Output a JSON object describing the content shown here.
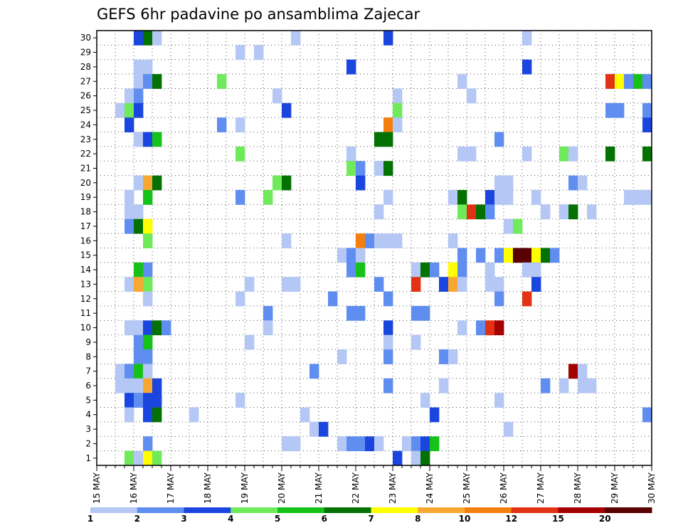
{
  "chart_data": {
    "type": "heatmap",
    "title": "GEFS 6hr padavine po ansamblima Zajecar",
    "x_ticks": [
      "15 MAY",
      "16 MAY",
      "17 MAY",
      "18 MAY",
      "19 MAY",
      "20 MAY",
      "21 MAY",
      "22 MAY",
      "23 MAY",
      "24 MAY",
      "25 MAY",
      "26 MAY",
      "27 MAY",
      "28 MAY",
      "29 MAY",
      "30 MAY"
    ],
    "y_ticks": [
      "1",
      "2",
      "3",
      "4",
      "5",
      "6",
      "7",
      "8",
      "9",
      "10",
      "11",
      "12",
      "13",
      "14",
      "15",
      "16",
      "17",
      "18",
      "19",
      "20",
      "21",
      "22",
      "23",
      "24",
      "25",
      "26",
      "27",
      "28",
      "29",
      "30"
    ],
    "x_range": [
      0,
      60
    ],
    "y_range": [
      0,
      30
    ],
    "grid": true,
    "legend": "bottom",
    "colorbar": {
      "labels": [
        "1",
        "2",
        "3",
        "4",
        "5",
        "6",
        "7",
        "8",
        "10",
        "12",
        "15",
        "20"
      ],
      "colors": [
        "#b4c7f5",
        "#5f8ef0",
        "#1a46df",
        "#6fea5a",
        "#16c21a",
        "#037203",
        "#ffff00",
        "#f8a832",
        "#f57f0c",
        "#e23214",
        "#a40000",
        "#5a0000"
      ]
    },
    "cells": [
      {
        "t": 4,
        "m": 30,
        "c": 3
      },
      {
        "t": 5,
        "m": 30,
        "c": 6
      },
      {
        "t": 6,
        "m": 30,
        "c": 1
      },
      {
        "t": 21,
        "m": 30,
        "c": 1
      },
      {
        "t": 31,
        "m": 30,
        "c": 3
      },
      {
        "t": 46,
        "m": 30,
        "c": 1
      },
      {
        "t": 15,
        "m": 29,
        "c": 1
      },
      {
        "t": 17,
        "m": 29,
        "c": 1
      },
      {
        "t": 4,
        "m": 28,
        "c": 1
      },
      {
        "t": 5,
        "m": 28,
        "c": 1
      },
      {
        "t": 27,
        "m": 28,
        "c": 3
      },
      {
        "t": 46,
        "m": 28,
        "c": 3
      },
      {
        "t": 4,
        "m": 27,
        "c": 1
      },
      {
        "t": 5,
        "m": 27,
        "c": 2
      },
      {
        "t": 6,
        "m": 27,
        "c": 6
      },
      {
        "t": 13,
        "m": 27,
        "c": 4
      },
      {
        "t": 39,
        "m": 27,
        "c": 1
      },
      {
        "t": 55,
        "m": 27,
        "c": 10
      },
      {
        "t": 56,
        "m": 27,
        "c": 7
      },
      {
        "t": 57,
        "m": 27,
        "c": 2
      },
      {
        "t": 58,
        "m": 27,
        "c": 5
      },
      {
        "t": 59,
        "m": 27,
        "c": 2
      },
      {
        "t": 3,
        "m": 26,
        "c": 1
      },
      {
        "t": 4,
        "m": 26,
        "c": 2
      },
      {
        "t": 19,
        "m": 26,
        "c": 1
      },
      {
        "t": 32,
        "m": 26,
        "c": 1
      },
      {
        "t": 40,
        "m": 26,
        "c": 1
      },
      {
        "t": 2,
        "m": 25,
        "c": 1
      },
      {
        "t": 3,
        "m": 25,
        "c": 4
      },
      {
        "t": 4,
        "m": 25,
        "c": 3
      },
      {
        "t": 20,
        "m": 25,
        "c": 3
      },
      {
        "t": 32,
        "m": 25,
        "c": 4
      },
      {
        "t": 55,
        "m": 25,
        "c": 2
      },
      {
        "t": 56,
        "m": 25,
        "c": 2
      },
      {
        "t": 59,
        "m": 25,
        "c": 2
      },
      {
        "t": 3,
        "m": 24,
        "c": 3
      },
      {
        "t": 13,
        "m": 24,
        "c": 2
      },
      {
        "t": 15,
        "m": 24,
        "c": 1
      },
      {
        "t": 31,
        "m": 24,
        "c": 9
      },
      {
        "t": 32,
        "m": 24,
        "c": 1
      },
      {
        "t": 59,
        "m": 24,
        "c": 3
      },
      {
        "t": 4,
        "m": 23,
        "c": 1
      },
      {
        "t": 5,
        "m": 23,
        "c": 3
      },
      {
        "t": 6,
        "m": 23,
        "c": 5
      },
      {
        "t": 30,
        "m": 23,
        "c": 6
      },
      {
        "t": 31,
        "m": 23,
        "c": 6
      },
      {
        "t": 43,
        "m": 23,
        "c": 2
      },
      {
        "t": 15,
        "m": 22,
        "c": 4
      },
      {
        "t": 27,
        "m": 22,
        "c": 1
      },
      {
        "t": 39,
        "m": 22,
        "c": 1
      },
      {
        "t": 40,
        "m": 22,
        "c": 1
      },
      {
        "t": 46,
        "m": 22,
        "c": 1
      },
      {
        "t": 50,
        "m": 22,
        "c": 4
      },
      {
        "t": 51,
        "m": 22,
        "c": 1
      },
      {
        "t": 55,
        "m": 22,
        "c": 6
      },
      {
        "t": 59,
        "m": 22,
        "c": 6
      },
      {
        "t": 27,
        "m": 21,
        "c": 4
      },
      {
        "t": 28,
        "m": 21,
        "c": 2
      },
      {
        "t": 30,
        "m": 21,
        "c": 1
      },
      {
        "t": 31,
        "m": 21,
        "c": 6
      },
      {
        "t": 4,
        "m": 20,
        "c": 1
      },
      {
        "t": 5,
        "m": 20,
        "c": 8
      },
      {
        "t": 6,
        "m": 20,
        "c": 6
      },
      {
        "t": 19,
        "m": 20,
        "c": 4
      },
      {
        "t": 20,
        "m": 20,
        "c": 6
      },
      {
        "t": 28,
        "m": 20,
        "c": 3
      },
      {
        "t": 43,
        "m": 20,
        "c": 1
      },
      {
        "t": 44,
        "m": 20,
        "c": 1
      },
      {
        "t": 51,
        "m": 20,
        "c": 2
      },
      {
        "t": 52,
        "m": 20,
        "c": 1
      },
      {
        "t": 3,
        "m": 19,
        "c": 1
      },
      {
        "t": 5,
        "m": 19,
        "c": 5
      },
      {
        "t": 15,
        "m": 19,
        "c": 2
      },
      {
        "t": 18,
        "m": 19,
        "c": 4
      },
      {
        "t": 31,
        "m": 19,
        "c": 1
      },
      {
        "t": 38,
        "m": 19,
        "c": 1
      },
      {
        "t": 39,
        "m": 19,
        "c": 6
      },
      {
        "t": 42,
        "m": 19,
        "c": 3
      },
      {
        "t": 43,
        "m": 19,
        "c": 1
      },
      {
        "t": 44,
        "m": 19,
        "c": 1
      },
      {
        "t": 47,
        "m": 19,
        "c": 1
      },
      {
        "t": 57,
        "m": 19,
        "c": 1
      },
      {
        "t": 58,
        "m": 19,
        "c": 1
      },
      {
        "t": 59,
        "m": 19,
        "c": 1
      },
      {
        "t": 3,
        "m": 18,
        "c": 1
      },
      {
        "t": 4,
        "m": 18,
        "c": 1
      },
      {
        "t": 30,
        "m": 18,
        "c": 1
      },
      {
        "t": 39,
        "m": 18,
        "c": 4
      },
      {
        "t": 40,
        "m": 18,
        "c": 10
      },
      {
        "t": 41,
        "m": 18,
        "c": 6
      },
      {
        "t": 42,
        "m": 18,
        "c": 2
      },
      {
        "t": 48,
        "m": 18,
        "c": 1
      },
      {
        "t": 50,
        "m": 18,
        "c": 1
      },
      {
        "t": 51,
        "m": 18,
        "c": 6
      },
      {
        "t": 53,
        "m": 18,
        "c": 1
      },
      {
        "t": 3,
        "m": 17,
        "c": 2
      },
      {
        "t": 4,
        "m": 17,
        "c": 6
      },
      {
        "t": 5,
        "m": 17,
        "c": 7
      },
      {
        "t": 44,
        "m": 17,
        "c": 1
      },
      {
        "t": 45,
        "m": 17,
        "c": 4
      },
      {
        "t": 5,
        "m": 16,
        "c": 4
      },
      {
        "t": 20,
        "m": 16,
        "c": 1
      },
      {
        "t": 28,
        "m": 16,
        "c": 9
      },
      {
        "t": 29,
        "m": 16,
        "c": 2
      },
      {
        "t": 30,
        "m": 16,
        "c": 1
      },
      {
        "t": 31,
        "m": 16,
        "c": 1
      },
      {
        "t": 32,
        "m": 16,
        "c": 1
      },
      {
        "t": 38,
        "m": 16,
        "c": 1
      },
      {
        "t": 26,
        "m": 15,
        "c": 1
      },
      {
        "t": 27,
        "m": 15,
        "c": 2
      },
      {
        "t": 28,
        "m": 15,
        "c": 1
      },
      {
        "t": 39,
        "m": 15,
        "c": 2
      },
      {
        "t": 41,
        "m": 15,
        "c": 2
      },
      {
        "t": 43,
        "m": 15,
        "c": 2
      },
      {
        "t": 44,
        "m": 15,
        "c": 7
      },
      {
        "t": 45,
        "m": 15,
        "c": 12
      },
      {
        "t": 46,
        "m": 15,
        "c": 12
      },
      {
        "t": 47,
        "m": 15,
        "c": 7
      },
      {
        "t": 48,
        "m": 15,
        "c": 6
      },
      {
        "t": 49,
        "m": 15,
        "c": 2
      },
      {
        "t": 4,
        "m": 14,
        "c": 5
      },
      {
        "t": 5,
        "m": 14,
        "c": 2
      },
      {
        "t": 27,
        "m": 14,
        "c": 2
      },
      {
        "t": 28,
        "m": 14,
        "c": 5
      },
      {
        "t": 34,
        "m": 14,
        "c": 1
      },
      {
        "t": 35,
        "m": 14,
        "c": 6
      },
      {
        "t": 36,
        "m": 14,
        "c": 2
      },
      {
        "t": 38,
        "m": 14,
        "c": 7
      },
      {
        "t": 39,
        "m": 14,
        "c": 2
      },
      {
        "t": 42,
        "m": 14,
        "c": 1
      },
      {
        "t": 46,
        "m": 14,
        "c": 1
      },
      {
        "t": 47,
        "m": 14,
        "c": 1
      },
      {
        "t": 3,
        "m": 13,
        "c": 1
      },
      {
        "t": 4,
        "m": 13,
        "c": 8
      },
      {
        "t": 5,
        "m": 13,
        "c": 4
      },
      {
        "t": 16,
        "m": 13,
        "c": 1
      },
      {
        "t": 20,
        "m": 13,
        "c": 1
      },
      {
        "t": 21,
        "m": 13,
        "c": 1
      },
      {
        "t": 30,
        "m": 13,
        "c": 2
      },
      {
        "t": 34,
        "m": 13,
        "c": 10
      },
      {
        "t": 37,
        "m": 13,
        "c": 3
      },
      {
        "t": 38,
        "m": 13,
        "c": 8
      },
      {
        "t": 39,
        "m": 13,
        "c": 1
      },
      {
        "t": 42,
        "m": 13,
        "c": 1
      },
      {
        "t": 43,
        "m": 13,
        "c": 1
      },
      {
        "t": 47,
        "m": 13,
        "c": 3
      },
      {
        "t": 5,
        "m": 12,
        "c": 1
      },
      {
        "t": 15,
        "m": 12,
        "c": 1
      },
      {
        "t": 25,
        "m": 12,
        "c": 2
      },
      {
        "t": 31,
        "m": 12,
        "c": 2
      },
      {
        "t": 43,
        "m": 12,
        "c": 2
      },
      {
        "t": 46,
        "m": 12,
        "c": 10
      },
      {
        "t": 18,
        "m": 11,
        "c": 2
      },
      {
        "t": 27,
        "m": 11,
        "c": 2
      },
      {
        "t": 28,
        "m": 11,
        "c": 2
      },
      {
        "t": 34,
        "m": 11,
        "c": 2
      },
      {
        "t": 35,
        "m": 11,
        "c": 2
      },
      {
        "t": 3,
        "m": 10,
        "c": 1
      },
      {
        "t": 4,
        "m": 10,
        "c": 1
      },
      {
        "t": 5,
        "m": 10,
        "c": 3
      },
      {
        "t": 6,
        "m": 10,
        "c": 6
      },
      {
        "t": 7,
        "m": 10,
        "c": 2
      },
      {
        "t": 18,
        "m": 10,
        "c": 1
      },
      {
        "t": 31,
        "m": 10,
        "c": 3
      },
      {
        "t": 39,
        "m": 10,
        "c": 1
      },
      {
        "t": 41,
        "m": 10,
        "c": 2
      },
      {
        "t": 42,
        "m": 10,
        "c": 10
      },
      {
        "t": 43,
        "m": 10,
        "c": 11
      },
      {
        "t": 4,
        "m": 9,
        "c": 2
      },
      {
        "t": 5,
        "m": 9,
        "c": 5
      },
      {
        "t": 16,
        "m": 9,
        "c": 1
      },
      {
        "t": 31,
        "m": 9,
        "c": 1
      },
      {
        "t": 34,
        "m": 9,
        "c": 1
      },
      {
        "t": 4,
        "m": 8,
        "c": 2
      },
      {
        "t": 5,
        "m": 8,
        "c": 2
      },
      {
        "t": 26,
        "m": 8,
        "c": 1
      },
      {
        "t": 31,
        "m": 8,
        "c": 2
      },
      {
        "t": 37,
        "m": 8,
        "c": 2
      },
      {
        "t": 38,
        "m": 8,
        "c": 1
      },
      {
        "t": 2,
        "m": 7,
        "c": 1
      },
      {
        "t": 3,
        "m": 7,
        "c": 2
      },
      {
        "t": 4,
        "m": 7,
        "c": 5
      },
      {
        "t": 5,
        "m": 7,
        "c": 1
      },
      {
        "t": 23,
        "m": 7,
        "c": 2
      },
      {
        "t": 51,
        "m": 7,
        "c": 11
      },
      {
        "t": 52,
        "m": 7,
        "c": 1
      },
      {
        "t": 2,
        "m": 6,
        "c": 1
      },
      {
        "t": 3,
        "m": 6,
        "c": 1
      },
      {
        "t": 4,
        "m": 6,
        "c": 1
      },
      {
        "t": 5,
        "m": 6,
        "c": 8
      },
      {
        "t": 6,
        "m": 6,
        "c": 3
      },
      {
        "t": 31,
        "m": 6,
        "c": 2
      },
      {
        "t": 37,
        "m": 6,
        "c": 1
      },
      {
        "t": 48,
        "m": 6,
        "c": 2
      },
      {
        "t": 50,
        "m": 6,
        "c": 1
      },
      {
        "t": 52,
        "m": 6,
        "c": 1
      },
      {
        "t": 53,
        "m": 6,
        "c": 1
      },
      {
        "t": 3,
        "m": 5,
        "c": 3
      },
      {
        "t": 4,
        "m": 5,
        "c": 2
      },
      {
        "t": 5,
        "m": 5,
        "c": 3
      },
      {
        "t": 6,
        "m": 5,
        "c": 3
      },
      {
        "t": 15,
        "m": 5,
        "c": 1
      },
      {
        "t": 35,
        "m": 5,
        "c": 1
      },
      {
        "t": 43,
        "m": 5,
        "c": 1
      },
      {
        "t": 3,
        "m": 4,
        "c": 1
      },
      {
        "t": 5,
        "m": 4,
        "c": 3
      },
      {
        "t": 6,
        "m": 4,
        "c": 6
      },
      {
        "t": 10,
        "m": 4,
        "c": 1
      },
      {
        "t": 22,
        "m": 4,
        "c": 1
      },
      {
        "t": 36,
        "m": 4,
        "c": 3
      },
      {
        "t": 59,
        "m": 4,
        "c": 2
      },
      {
        "t": 23,
        "m": 3,
        "c": 1
      },
      {
        "t": 24,
        "m": 3,
        "c": 3
      },
      {
        "t": 44,
        "m": 3,
        "c": 1
      },
      {
        "t": 5,
        "m": 2,
        "c": 2
      },
      {
        "t": 20,
        "m": 2,
        "c": 1
      },
      {
        "t": 21,
        "m": 2,
        "c": 1
      },
      {
        "t": 26,
        "m": 2,
        "c": 1
      },
      {
        "t": 27,
        "m": 2,
        "c": 2
      },
      {
        "t": 28,
        "m": 2,
        "c": 2
      },
      {
        "t": 29,
        "m": 2,
        "c": 3
      },
      {
        "t": 30,
        "m": 2,
        "c": 1
      },
      {
        "t": 33,
        "m": 2,
        "c": 1
      },
      {
        "t": 34,
        "m": 2,
        "c": 2
      },
      {
        "t": 35,
        "m": 2,
        "c": 3
      },
      {
        "t": 36,
        "m": 2,
        "c": 5
      },
      {
        "t": 3,
        "m": 1,
        "c": 4
      },
      {
        "t": 4,
        "m": 1,
        "c": 1
      },
      {
        "t": 5,
        "m": 1,
        "c": 7
      },
      {
        "t": 6,
        "m": 1,
        "c": 4
      },
      {
        "t": 32,
        "m": 1,
        "c": 3
      },
      {
        "t": 34,
        "m": 1,
        "c": 1
      },
      {
        "t": 35,
        "m": 1,
        "c": 6
      }
    ]
  }
}
